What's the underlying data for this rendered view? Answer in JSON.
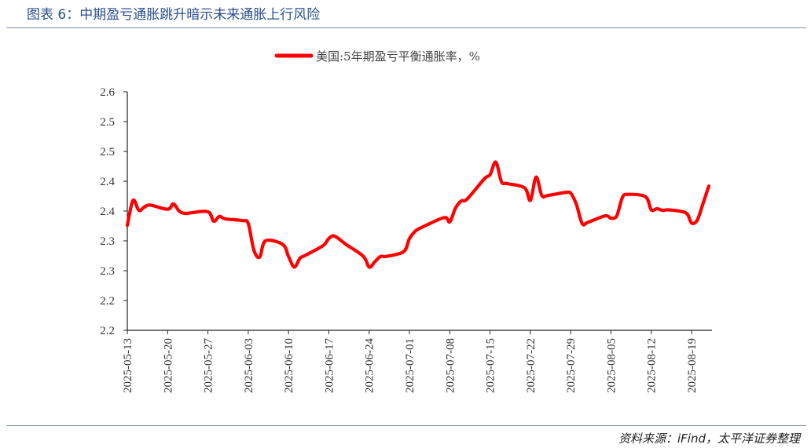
{
  "title": "图表 6：中期盈亏通胀跳升暗示未来通胀上行风险",
  "source": "资料来源：iFind，太平洋证券整理",
  "chart_data": {
    "type": "line",
    "title": "",
    "xlabel": "",
    "ylabel": "",
    "legend_position": "top-center",
    "grid": false,
    "y_ticks": [
      "2.2",
      "2.2",
      "2.3",
      "2.3",
      "2.4",
      "2.4",
      "2.5",
      "2.5",
      "2.6"
    ],
    "ylim": [
      2.2,
      2.6
    ],
    "x_ticks": [
      "2025-05-13",
      "2025-05-20",
      "2025-05-27",
      "2025-06-03",
      "2025-06-10",
      "2025-06-17",
      "2025-06-24",
      "2025-07-01",
      "2025-07-08",
      "2025-07-15",
      "2025-07-22",
      "2025-07-29",
      "2025-08-05",
      "2025-08-12",
      "2025-08-19"
    ],
    "series": [
      {
        "name": "美国:5年期盈亏平衡通胀率，%",
        "color": "#ff0000",
        "x": [
          "2025-05-13",
          "2025-05-14",
          "2025-05-15",
          "2025-05-16",
          "2025-05-17",
          "2025-05-20",
          "2025-05-21",
          "2025-05-22",
          "2025-05-23",
          "2025-05-24",
          "2025-05-27",
          "2025-05-28",
          "2025-05-29",
          "2025-05-30",
          "2025-06-02",
          "2025-06-03",
          "2025-06-04",
          "2025-06-05",
          "2025-06-06",
          "2025-06-09",
          "2025-06-10",
          "2025-06-11",
          "2025-06-12",
          "2025-06-13",
          "2025-06-16",
          "2025-06-17",
          "2025-06-18",
          "2025-06-20",
          "2025-06-23",
          "2025-06-24",
          "2025-06-25",
          "2025-06-26",
          "2025-06-27",
          "2025-06-30",
          "2025-07-01",
          "2025-07-02",
          "2025-07-03",
          "2025-07-07",
          "2025-07-08",
          "2025-07-09",
          "2025-07-10",
          "2025-07-11",
          "2025-07-14",
          "2025-07-15",
          "2025-07-16",
          "2025-07-17",
          "2025-07-18",
          "2025-07-21",
          "2025-07-22",
          "2025-07-23",
          "2025-07-24",
          "2025-07-25",
          "2025-07-28",
          "2025-07-29",
          "2025-07-30",
          "2025-07-31",
          "2025-08-01",
          "2025-08-04",
          "2025-08-05",
          "2025-08-06",
          "2025-08-07",
          "2025-08-08",
          "2025-08-11",
          "2025-08-12",
          "2025-08-13",
          "2025-08-14",
          "2025-08-15",
          "2025-08-18",
          "2025-08-19",
          "2025-08-20",
          "2025-08-21",
          "2025-08-22"
        ],
        "values": [
          2.376,
          2.418,
          2.401,
          2.407,
          2.41,
          2.403,
          2.412,
          2.4,
          2.396,
          2.397,
          2.399,
          2.383,
          2.391,
          2.387,
          2.384,
          2.379,
          2.334,
          2.323,
          2.35,
          2.344,
          2.324,
          2.306,
          2.321,
          2.326,
          2.342,
          2.354,
          2.358,
          2.344,
          2.324,
          2.306,
          2.315,
          2.324,
          2.324,
          2.332,
          2.354,
          2.366,
          2.372,
          2.389,
          2.382,
          2.405,
          2.417,
          2.42,
          2.454,
          2.461,
          2.482,
          2.449,
          2.446,
          2.439,
          2.418,
          2.457,
          2.426,
          2.426,
          2.431,
          2.43,
          2.411,
          2.379,
          2.381,
          2.392,
          2.388,
          2.392,
          2.423,
          2.428,
          2.424,
          2.402,
          2.404,
          2.401,
          2.402,
          2.397,
          2.38,
          2.385,
          2.413,
          2.442
        ]
      }
    ]
  }
}
